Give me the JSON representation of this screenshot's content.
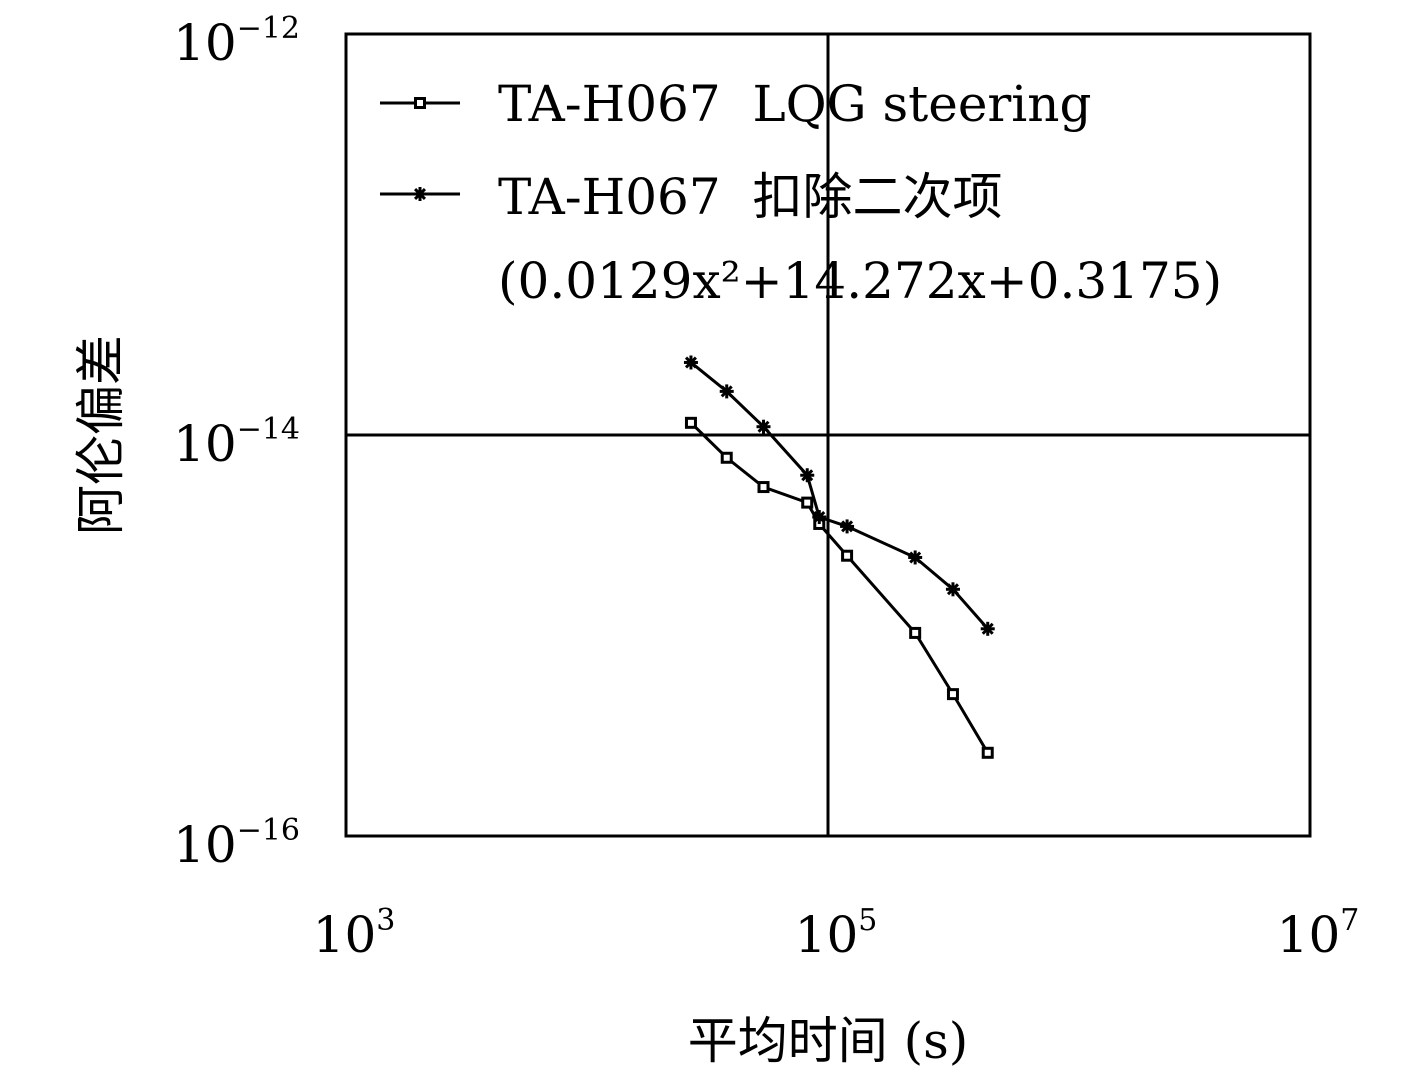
{
  "chart_data": {
    "type": "line",
    "xlabel": "平均时间 (s)",
    "ylabel": "阿伦偏差",
    "x_scale": "log",
    "y_scale": "log",
    "xlim": [
      1000,
      10000000
    ],
    "ylim": [
      1e-16,
      1e-12
    ],
    "grid": "major lines at 1e5 (x) and 1e-14 (y)",
    "legend_position": "top",
    "x_ticks": [
      {
        "value": 1000,
        "base": "10",
        "exp": "3"
      },
      {
        "value": 100000,
        "base": "10",
        "exp": "5"
      },
      {
        "value": 10000000,
        "base": "10",
        "exp": "7"
      }
    ],
    "y_ticks": [
      {
        "value": 1e-12,
        "base": "10",
        "exp": "−12"
      },
      {
        "value": 1e-14,
        "base": "10",
        "exp": "−14"
      },
      {
        "value": 1e-16,
        "base": "10",
        "exp": "−16"
      }
    ],
    "series": [
      {
        "name": "TA-H067  LQG steering",
        "marker": "square",
        "color": "#000000",
        "x": [
          27000,
          38000,
          54000,
          82000,
          92000,
          120000,
          230000,
          330000,
          460000
        ],
        "y": [
          1.15e-14,
          7.7e-15,
          5.5e-15,
          4.6e-15,
          3.6e-15,
          2.5e-15,
          1.03e-15,
          5.1e-16,
          2.6e-16
        ]
      },
      {
        "name": "TA-H067  扣除二次项",
        "name_note": "(0.0129x²+14.272x+0.3175)",
        "marker": "asterisk",
        "color": "#000000",
        "x": [
          27000,
          38000,
          54000,
          82000,
          92000,
          120000,
          230000,
          330000,
          460000
        ],
        "y": [
          2.3e-14,
          1.65e-14,
          1.1e-14,
          6.3e-15,
          3.9e-15,
          3.5e-15,
          2.45e-15,
          1.7e-15,
          1.08e-15
        ]
      }
    ]
  },
  "legend": {
    "entries": [
      {
        "label": "TA-H067  LQG steering",
        "marker": "square"
      },
      {
        "label": "TA-H067  扣除二次项",
        "marker": "asterisk"
      }
    ],
    "formula": "(0.0129x²+14.272x+0.3175)"
  }
}
